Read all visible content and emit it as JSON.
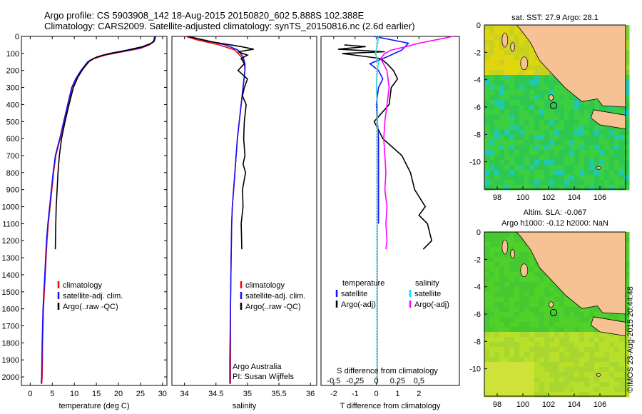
{
  "titles": {
    "line1": "Argo profile: CS 5903908_142 18-Aug-2015 20150820_602 5.888S 102.388E",
    "line2": "Climatology: CARS2009. Satellite-adjusted climatology: synTS_20150816.nc (2.6d earlier)"
  },
  "colors": {
    "climatology": "#ff0000",
    "satellite": "#1010ff",
    "argo": "#000000",
    "sal_satellite": "#00e5ee",
    "sal_argo": "#ff00ff",
    "land": "#f6c193",
    "sst_field": "#2ecc40",
    "sla_field": "#4fd12a"
  },
  "chart_data": [
    {
      "id": "temperature",
      "type": "line",
      "xlabel": "temperature (deg C)",
      "ylabel": "",
      "xlim": [
        -2,
        31
      ],
      "ylim": [
        2050,
        0
      ],
      "xticks": [
        0,
        5,
        10,
        15,
        20,
        25,
        30
      ],
      "yticks": [
        0,
        100,
        200,
        300,
        400,
        500,
        600,
        700,
        800,
        900,
        1000,
        1100,
        1200,
        1300,
        1400,
        1500,
        1600,
        1700,
        1800,
        1900,
        2000
      ],
      "legend": [
        "climatology",
        "satellite-adj. clim.",
        "Argo(..raw -QC)"
      ],
      "series": [
        {
          "name": "climatology",
          "color": "#ff0000",
          "x": [
            28.3,
            28.1,
            27,
            25,
            21,
            17,
            14.5,
            13.2,
            11.7,
            10.5,
            9.5,
            8.6,
            7.7,
            6.8,
            5.8,
            5.3,
            4.9,
            4.5,
            4.1,
            3.8,
            3.6,
            3.4,
            3.2,
            3.0,
            2.8,
            2.7,
            2.6
          ],
          "y": [
            0,
            30,
            50,
            70,
            90,
            110,
            130,
            150,
            200,
            250,
            300,
            400,
            500,
            600,
            700,
            800,
            900,
            1000,
            1100,
            1200,
            1300,
            1400,
            1500,
            1600,
            1800,
            2000,
            2040
          ]
        },
        {
          "name": "satellite-adj. clim.",
          "color": "#1010ff",
          "x": [
            28.2,
            28,
            26.8,
            24.6,
            20.5,
            16.5,
            14.3,
            13,
            11.5,
            10.3,
            9.4,
            8.5,
            7.6,
            6.7,
            5.7,
            5.2,
            4.8,
            4.4,
            4.0,
            3.7,
            3.5,
            3.3,
            3.1,
            2.9,
            2.7,
            2.6,
            2.5
          ],
          "y": [
            0,
            30,
            50,
            70,
            90,
            110,
            130,
            150,
            200,
            250,
            300,
            400,
            500,
            600,
            700,
            800,
            900,
            1000,
            1100,
            1200,
            1300,
            1400,
            1500,
            1600,
            1800,
            2000,
            2040
          ]
        },
        {
          "name": "Argo(..raw -QC)",
          "color": "#000000",
          "x": [
            28.4,
            28.2,
            27.5,
            25.5,
            22,
            18,
            15.2,
            13.6,
            12,
            10.8,
            9.8,
            8.8,
            7.9,
            7.1,
            6.6,
            6.3,
            6.1,
            5.9,
            5.8,
            5.7
          ],
          "y": [
            0,
            20,
            40,
            60,
            80,
            100,
            120,
            140,
            190,
            240,
            300,
            400,
            500,
            600,
            700,
            800,
            900,
            1000,
            1100,
            1250
          ]
        }
      ]
    },
    {
      "id": "salinity",
      "type": "line",
      "xlabel": "salinity",
      "ylabel": "",
      "xlim": [
        33.8,
        36.1
      ],
      "ylim": [
        2050,
        0
      ],
      "xticks": [
        34,
        34.5,
        35,
        35.5,
        36
      ],
      "xtick_labels": [
        "34",
        "34.5",
        "35",
        "35.5",
        "36"
      ],
      "legend": [
        "climatology",
        "satellite-adj. clim.",
        "Argo(..raw -QC)"
      ],
      "annotation": [
        "Argo Australia",
        "PI: Susan Wijffels"
      ],
      "series": [
        {
          "name": "climatology",
          "color": "#ff0000",
          "x": [
            34.02,
            34.2,
            34.55,
            34.8,
            34.9,
            34.95,
            34.96,
            34.93,
            34.9,
            34.87,
            34.84,
            34.82,
            34.8,
            34.78,
            34.76,
            34.75,
            34.74,
            34.73,
            34.73,
            34.73
          ],
          "y": [
            0,
            20,
            50,
            80,
            120,
            160,
            200,
            300,
            400,
            500,
            600,
            700,
            800,
            900,
            1000,
            1100,
            1300,
            1600,
            1900,
            2040
          ]
        },
        {
          "name": "satellite-adj. clim.",
          "color": "#1010ff",
          "x": [
            34.06,
            34.3,
            34.65,
            34.85,
            34.93,
            34.96,
            34.96,
            34.93,
            34.9,
            34.87,
            34.84,
            34.82,
            34.8,
            34.78,
            34.76,
            34.75,
            34.74,
            34.73,
            34.72,
            34.72
          ],
          "y": [
            0,
            20,
            50,
            80,
            120,
            160,
            200,
            300,
            400,
            500,
            600,
            700,
            800,
            900,
            1000,
            1100,
            1300,
            1600,
            1900,
            2040
          ]
        },
        {
          "name": "Argo(..raw -QC)",
          "color": "#000000",
          "x": [
            34.05,
            34.4,
            34.9,
            35.1,
            34.85,
            35.0,
            34.9,
            34.95,
            34.85,
            35.0,
            34.95,
            34.92,
            34.98,
            34.95,
            34.94,
            34.96,
            34.93,
            34.97,
            34.92,
            34.93,
            34.9,
            34.91
          ],
          "y": [
            0,
            30,
            60,
            75,
            90,
            110,
            130,
            160,
            200,
            250,
            300,
            350,
            400,
            500,
            600,
            700,
            750,
            800,
            900,
            1000,
            1100,
            1250
          ]
        }
      ]
    },
    {
      "id": "difference",
      "type": "line",
      "xlabel": "T difference from climatology",
      "top_label": "S difference from climatology",
      "xlim": [
        -2.6,
        3.9
      ],
      "ylim": [
        2050,
        0
      ],
      "xticks": [
        -2,
        -1,
        0,
        1,
        2
      ],
      "top_ticks": [
        -0.5,
        -0.25,
        0,
        0.25,
        0.5
      ],
      "top_tick_labels": [
        "-0.5",
        "-0.25",
        "0",
        "0.25",
        "0.5"
      ],
      "legend_left_title": "temperature",
      "legend_right_title": "salinity",
      "legend": [
        "satellite",
        "Argo(-adj)",
        "satellite",
        "Argo(-adj)"
      ],
      "series": [
        {
          "name": "satellite",
          "group": "temperature",
          "color": "#1010ff",
          "x": [
            -0.1,
            1.5,
            1.2,
            0.5,
            -0.3,
            0.1,
            0.3,
            0.1,
            0,
            0.05,
            0.1,
            0.1,
            0.1,
            0.1
          ],
          "y": [
            0,
            40,
            80,
            120,
            160,
            200,
            250,
            300,
            400,
            500,
            600,
            700,
            900,
            1100
          ]
        },
        {
          "name": "Argo(-adj)",
          "group": "temperature",
          "color": "#000000",
          "x": [
            -1.5,
            -0.5,
            -1.8,
            0.4,
            -1.6,
            0.2,
            0.5,
            0.8,
            1.0,
            0.7,
            0.6,
            -0.1,
            0.3,
            1.2,
            1.6,
            1.8,
            2.3,
            2.0,
            2.4,
            2.6,
            2.2
          ],
          "y": [
            50,
            60,
            75,
            90,
            100,
            130,
            160,
            200,
            250,
            300,
            400,
            500,
            600,
            700,
            800,
            900,
            1000,
            1050,
            1100,
            1200,
            1250
          ]
        },
        {
          "name": "satellite",
          "group": "salinity",
          "color": "#00e5ee",
          "x": [
            0.1,
            0.05,
            -0.05,
            0.1,
            0.05,
            0.0,
            0.05,
            0.05,
            0.05,
            0.05,
            0.05,
            0.05,
            0.05,
            0.05
          ],
          "y": [
            0,
            50,
            100,
            150,
            200,
            300,
            400,
            600,
            800,
            1000,
            1200,
            1500,
            1800,
            2040
          ]
        },
        {
          "name": "Argo(-adj)",
          "group": "salinity",
          "color": "#ff00ff",
          "x": [
            3.6,
            2.8,
            2.0,
            1.4,
            0.7,
            0.4,
            0.2,
            0.5,
            0.6,
            0.5,
            0.4,
            0.35,
            0.4,
            0.45,
            0.4,
            0.5,
            0.45,
            0.5,
            0.45
          ],
          "y": [
            0,
            20,
            40,
            60,
            80,
            100,
            130,
            200,
            300,
            400,
            500,
            600,
            700,
            800,
            900,
            1000,
            1100,
            1200,
            1250
          ]
        }
      ]
    },
    {
      "id": "sst_map",
      "type": "heatmap",
      "title": "sat. SST: 27.9 Argo: 28.1",
      "xlim": [
        97,
        108
      ],
      "ylim": [
        -12,
        0
      ],
      "xticks": [
        98,
        100,
        102,
        104,
        106
      ],
      "yticks": [
        0,
        -2,
        -4,
        -6,
        -8,
        -10
      ],
      "marker": {
        "lon": 102.388,
        "lat": -5.888
      }
    },
    {
      "id": "sla_map",
      "type": "heatmap",
      "title": "Altim. SLA: -0.067",
      "subtitle": "Argo h1000: -0.12 h2000: NaN",
      "xlim": [
        97,
        108
      ],
      "ylim": [
        -12,
        0
      ],
      "xticks": [
        98,
        100,
        102,
        104,
        106
      ],
      "yticks": [
        0,
        -2,
        -4,
        -6,
        -8,
        -10
      ],
      "marker": {
        "lon": 102.388,
        "lat": -5.888
      }
    }
  ],
  "stamp": "©IMOS 23-Aug-2015 20:44:48"
}
